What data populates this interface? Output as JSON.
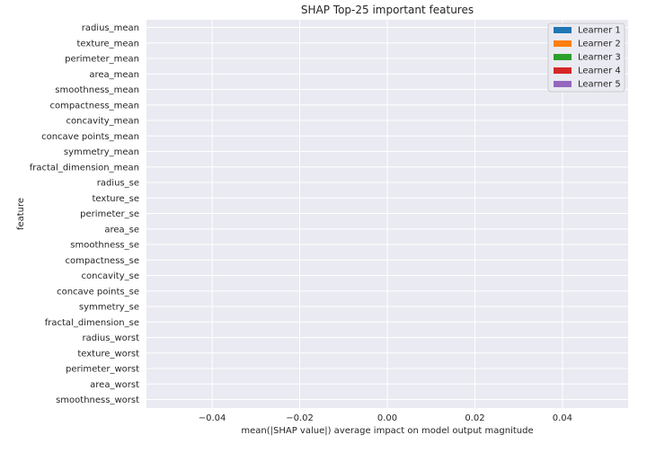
{
  "chart_data": {
    "type": "bar",
    "orientation": "horizontal",
    "title": "SHAP Top-25 important features",
    "xlabel": "mean(|SHAP value|) average impact on model output magnitude",
    "ylabel": "feature",
    "xlim": [
      -0.055,
      0.055
    ],
    "xticks": [
      -0.04,
      -0.02,
      0.0,
      0.02,
      0.04
    ],
    "xtick_labels": [
      "−0.04",
      "−0.02",
      "0.00",
      "0.02",
      "0.04"
    ],
    "grid": true,
    "background": "#eaeaf2",
    "legend_position": "top-right",
    "categories": [
      "radius_mean",
      "texture_mean",
      "perimeter_mean",
      "area_mean",
      "smoothness_mean",
      "compactness_mean",
      "concavity_mean",
      "concave points_mean",
      "symmetry_mean",
      "fractal_dimension_mean",
      "radius_se",
      "texture_se",
      "perimeter_se",
      "area_se",
      "smoothness_se",
      "compactness_se",
      "concavity_se",
      "concave points_se",
      "symmetry_se",
      "fractal_dimension_se",
      "radius_worst",
      "texture_worst",
      "perimeter_worst",
      "area_worst",
      "smoothness_worst"
    ],
    "series": [
      {
        "name": "Learner 1",
        "color": "#1f77b4",
        "values": [
          0,
          0,
          0,
          0,
          0,
          0,
          0,
          0,
          0,
          0,
          0,
          0,
          0,
          0,
          0,
          0,
          0,
          0,
          0,
          0,
          0,
          0,
          0,
          0,
          0
        ]
      },
      {
        "name": "Learner 2",
        "color": "#ff7f0e",
        "values": [
          0,
          0,
          0,
          0,
          0,
          0,
          0,
          0,
          0,
          0,
          0,
          0,
          0,
          0,
          0,
          0,
          0,
          0,
          0,
          0,
          0,
          0,
          0,
          0,
          0
        ]
      },
      {
        "name": "Learner 3",
        "color": "#2ca02c",
        "values": [
          0,
          0,
          0,
          0,
          0,
          0,
          0,
          0,
          0,
          0,
          0,
          0,
          0,
          0,
          0,
          0,
          0,
          0,
          0,
          0,
          0,
          0,
          0,
          0,
          0
        ]
      },
      {
        "name": "Learner 4",
        "color": "#d62728",
        "values": [
          0,
          0,
          0,
          0,
          0,
          0,
          0,
          0,
          0,
          0,
          0,
          0,
          0,
          0,
          0,
          0,
          0,
          0,
          0,
          0,
          0,
          0,
          0,
          0,
          0
        ]
      },
      {
        "name": "Learner 5",
        "color": "#9467bd",
        "values": [
          0,
          0,
          0,
          0,
          0,
          0,
          0,
          0,
          0,
          0,
          0,
          0,
          0,
          0,
          0,
          0,
          0,
          0,
          0,
          0,
          0,
          0,
          0,
          0,
          0
        ]
      }
    ]
  }
}
